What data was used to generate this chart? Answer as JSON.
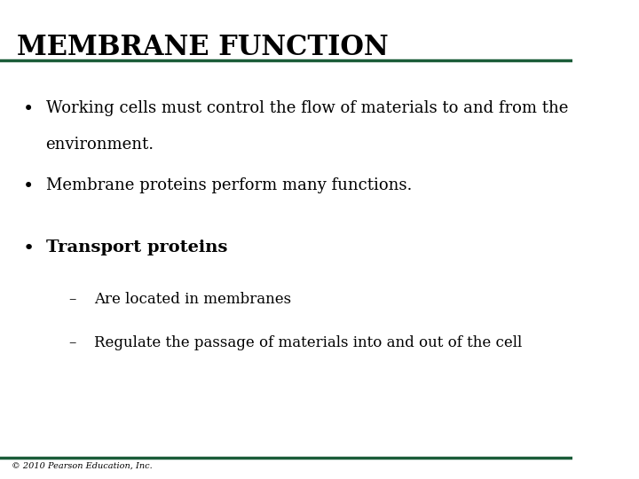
{
  "title": "MEMBRANE FUNCTION",
  "title_color": "#000000",
  "title_fontsize": 22,
  "title_bold": true,
  "background_color": "#ffffff",
  "line_color": "#1a5c38",
  "line_width": 2.5,
  "bullet_color": "#000000",
  "bullet1": "Working cells must control the flow of materials to and from the\n    environment.",
  "bullet2": "Membrane proteins perform many functions.",
  "bullet3_bold": "Transport proteins",
  "sub1": "Are located in membranes",
  "sub2": "Regulate the passage of materials into and out of the cell",
  "footer": "© 2010 Pearson Education, Inc.",
  "footer_fontsize": 7,
  "body_fontsize": 13,
  "bold_fontsize": 14,
  "sub_fontsize": 12
}
